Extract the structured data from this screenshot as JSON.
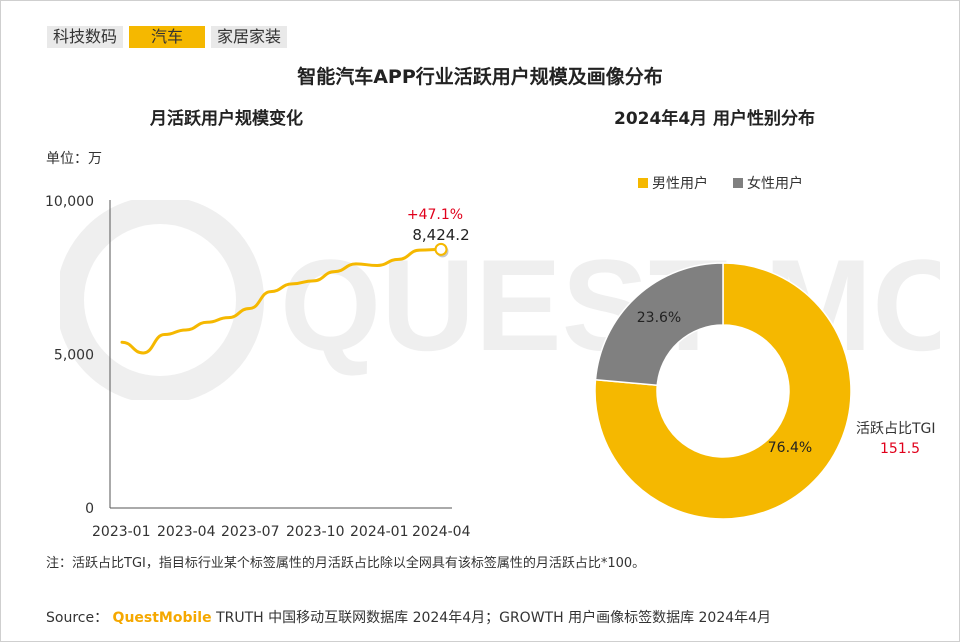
{
  "tabs": [
    {
      "label": "科技数码",
      "active": false
    },
    {
      "label": "汽车",
      "active": true
    },
    {
      "label": "家居家装",
      "active": false
    }
  ],
  "main_title": "智能汽车APP行业活跃用户规模及画像分布",
  "left_title": "月活跃用户规模变化",
  "right_title": "2024年4月 用户性别分布",
  "unit_label": "单位：万",
  "colors": {
    "accent": "#f5b800",
    "grey": "#808080",
    "red": "#e0001b"
  },
  "chart_data": [
    {
      "type": "line",
      "x": [
        "2023-01",
        "2023-02",
        "2023-03",
        "2023-04",
        "2023-05",
        "2023-06",
        "2023-07",
        "2023-08",
        "2023-09",
        "2023-10",
        "2023-11",
        "2023-12",
        "2024-01",
        "2024-02",
        "2024-03",
        "2024-04"
      ],
      "x_tick_labels": [
        "2023-01",
        "2023-04",
        "2023-07",
        "2023-10",
        "2024-01",
        "2024-04"
      ],
      "y_tick_labels": [
        "10,000",
        "5,000",
        "0"
      ],
      "values": [
        5400,
        5050,
        5650,
        5800,
        6050,
        6200,
        6500,
        7050,
        7300,
        7400,
        7700,
        7950,
        7900,
        8100,
        8400,
        8424.2
      ],
      "ylim": [
        0,
        10000
      ],
      "annotations": {
        "growth": "+47.1%",
        "last_value": "8,424.2"
      }
    },
    {
      "type": "pie",
      "legend": [
        "男性用户",
        "女性用户"
      ],
      "slices": [
        {
          "name": "男性用户",
          "value": 76.4,
          "label": "76.4%",
          "color": "#f5b800"
        },
        {
          "name": "女性用户",
          "value": 23.6,
          "label": "23.6%",
          "color": "#808080"
        }
      ],
      "tgi": {
        "label": "活跃占比TGI",
        "value": "151.5"
      }
    }
  ],
  "note": "注：活跃占比TGI，指目标行业某个标签属性的月活跃占比除以全网具有该标签属性的月活跃占比*100。",
  "source": {
    "prefix": "Source：",
    "brand": "QuestMobile",
    "text": "TRUTH 中国移动互联网数据库 2024年4月；GROWTH 用户画像标签数据库 2024年4月"
  },
  "watermark_text": "QUEST MOBILE"
}
